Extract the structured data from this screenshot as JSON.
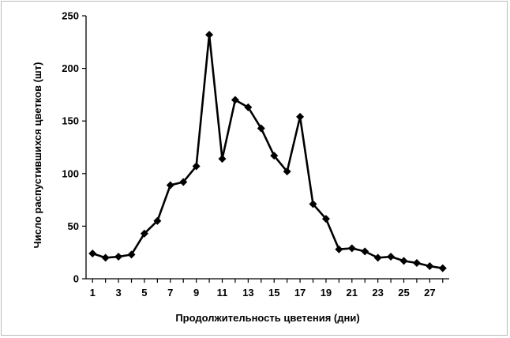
{
  "chart_data": {
    "type": "line",
    "title": "",
    "xlabel": "Продолжительность цветения (дни)",
    "ylabel": "Число распустившихся цветков (шт)",
    "x": [
      1,
      2,
      3,
      4,
      5,
      6,
      7,
      8,
      9,
      10,
      11,
      12,
      13,
      14,
      15,
      16,
      17,
      18,
      19,
      20,
      21,
      22,
      23,
      24,
      25,
      26,
      27,
      28
    ],
    "series": [
      {
        "name": "",
        "values": [
          24,
          20,
          21,
          23,
          43,
          55,
          89,
          92,
          107,
          232,
          114,
          170,
          163,
          143,
          117,
          102,
          154,
          71,
          57,
          28,
          29,
          26,
          20,
          21,
          17,
          15,
          12,
          10
        ]
      }
    ],
    "xlim": [
      0.5,
      28.5
    ],
    "ylim": [
      0,
      250
    ],
    "x_ticks": [
      "1",
      "3",
      "5",
      "7",
      "9",
      "11",
      "13",
      "15",
      "17",
      "19",
      "21",
      "23",
      "25",
      "27"
    ],
    "y_ticks": [
      "0",
      "50",
      "100",
      "150",
      "200",
      "250"
    ],
    "grid": false,
    "legend": "none",
    "line_color": "#000000",
    "marker": "diamond"
  }
}
